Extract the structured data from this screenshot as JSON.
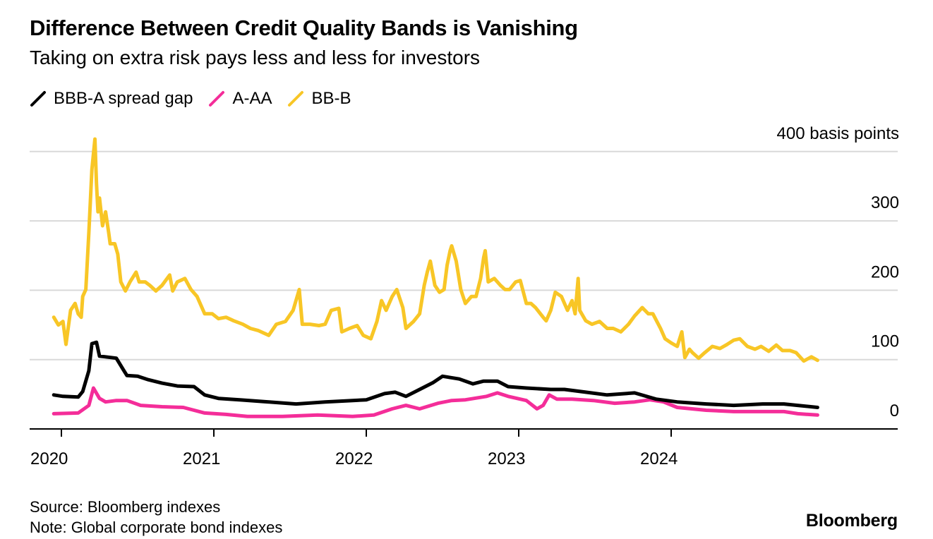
{
  "header": {
    "title": "Difference Between Credit Quality Bands is Vanishing",
    "subtitle": "Taking on extra risk pays less and less for investors"
  },
  "legend": [
    {
      "label": "BBB-A spread gap",
      "color": "#000000"
    },
    {
      "label": "A-AA",
      "color": "#f42d99"
    },
    {
      "label": "BB-B",
      "color": "#f8c626"
    }
  ],
  "footer": {
    "source": "Source: Bloomberg indexes",
    "note": "Note: Global corporate bond indexes",
    "logo": "Bloomberg"
  },
  "chart_data": {
    "type": "line",
    "title": "Difference Between Credit Quality Bands is Vanishing",
    "subtitle": "Taking on extra risk pays less and less for investors",
    "xlabel": "",
    "ylabel": "basis points",
    "y_unit_label": "400 basis points",
    "ylim": [
      0,
      400
    ],
    "xlim": [
      2019.8,
      2025.5
    ],
    "yticks": [
      0,
      100,
      200,
      300,
      400
    ],
    "ytick_labels": [
      "0",
      "100",
      "200",
      "300",
      "400 basis points"
    ],
    "xticks": [
      2020,
      2021,
      2022,
      2023,
      2024
    ],
    "xtick_labels": [
      "2020",
      "2021",
      "2022",
      "2023",
      "2024"
    ],
    "grid": true,
    "legend_position": "top-left",
    "series": [
      {
        "name": "BB-B",
        "color": "#f8c626",
        "points": [
          [
            2019.95,
            161
          ],
          [
            2019.98,
            150
          ],
          [
            2020.01,
            155
          ],
          [
            2020.03,
            122
          ],
          [
            2020.06,
            171
          ],
          [
            2020.09,
            181
          ],
          [
            2020.11,
            166
          ],
          [
            2020.13,
            161
          ],
          [
            2020.14,
            191
          ],
          [
            2020.16,
            201
          ],
          [
            2020.18,
            283
          ],
          [
            2020.2,
            374
          ],
          [
            2020.22,
            418
          ],
          [
            2020.23,
            354
          ],
          [
            2020.24,
            313
          ],
          [
            2020.25,
            333
          ],
          [
            2020.27,
            293
          ],
          [
            2020.29,
            313
          ],
          [
            2020.31,
            283
          ],
          [
            2020.32,
            267
          ],
          [
            2020.35,
            267
          ],
          [
            2020.37,
            252
          ],
          [
            2020.39,
            212
          ],
          [
            2020.42,
            199
          ],
          [
            2020.45,
            212
          ],
          [
            2020.49,
            226
          ],
          [
            2020.51,
            212
          ],
          [
            2020.55,
            212
          ],
          [
            2020.58,
            207
          ],
          [
            2020.62,
            199
          ],
          [
            2020.66,
            207
          ],
          [
            2020.71,
            222
          ],
          [
            2020.73,
            199
          ],
          [
            2020.76,
            212
          ],
          [
            2020.81,
            217
          ],
          [
            2020.85,
            201
          ],
          [
            2020.89,
            191
          ],
          [
            2020.94,
            166
          ],
          [
            2020.99,
            166
          ],
          [
            2021.03,
            159
          ],
          [
            2021.08,
            161
          ],
          [
            2021.13,
            156
          ],
          [
            2021.19,
            151
          ],
          [
            2021.24,
            145
          ],
          [
            2021.29,
            142
          ],
          [
            2021.36,
            135
          ],
          [
            2021.41,
            151
          ],
          [
            2021.47,
            155
          ],
          [
            2021.52,
            171
          ],
          [
            2021.56,
            201
          ],
          [
            2021.58,
            151
          ],
          [
            2021.63,
            151
          ],
          [
            2021.69,
            149
          ],
          [
            2021.73,
            151
          ],
          [
            2021.77,
            171
          ],
          [
            2021.82,
            174
          ],
          [
            2021.84,
            140
          ],
          [
            2021.89,
            145
          ],
          [
            2021.94,
            149
          ],
          [
            2021.98,
            135
          ],
          [
            2022.03,
            130
          ],
          [
            2022.07,
            155
          ],
          [
            2022.1,
            185
          ],
          [
            2022.13,
            171
          ],
          [
            2022.17,
            191
          ],
          [
            2022.2,
            201
          ],
          [
            2022.24,
            175
          ],
          [
            2022.26,
            145
          ],
          [
            2022.31,
            155
          ],
          [
            2022.35,
            166
          ],
          [
            2022.38,
            207
          ],
          [
            2022.4,
            226
          ],
          [
            2022.42,
            242
          ],
          [
            2022.45,
            207
          ],
          [
            2022.48,
            197
          ],
          [
            2022.51,
            201
          ],
          [
            2022.53,
            236
          ],
          [
            2022.55,
            257
          ],
          [
            2022.56,
            264
          ],
          [
            2022.59,
            242
          ],
          [
            2022.62,
            201
          ],
          [
            2022.65,
            181
          ],
          [
            2022.69,
            191
          ],
          [
            2022.72,
            191
          ],
          [
            2022.75,
            217
          ],
          [
            2022.77,
            247
          ],
          [
            2022.78,
            257
          ],
          [
            2022.8,
            212
          ],
          [
            2022.84,
            217
          ],
          [
            2022.88,
            207
          ],
          [
            2022.91,
            201
          ],
          [
            2022.94,
            201
          ],
          [
            2022.98,
            212
          ],
          [
            2023.01,
            214
          ],
          [
            2023.05,
            181
          ],
          [
            2023.08,
            181
          ],
          [
            2023.11,
            175
          ],
          [
            2023.16,
            161
          ],
          [
            2023.18,
            156
          ],
          [
            2023.21,
            171
          ],
          [
            2023.24,
            197
          ],
          [
            2023.28,
            191
          ],
          [
            2023.32,
            171
          ],
          [
            2023.35,
            185
          ],
          [
            2023.37,
            166
          ],
          [
            2023.39,
            217
          ],
          [
            2023.4,
            171
          ],
          [
            2023.44,
            156
          ],
          [
            2023.48,
            151
          ],
          [
            2023.53,
            155
          ],
          [
            2023.58,
            145
          ],
          [
            2023.62,
            145
          ],
          [
            2023.67,
            140
          ],
          [
            2023.72,
            151
          ],
          [
            2023.76,
            163
          ],
          [
            2023.81,
            175
          ],
          [
            2023.85,
            166
          ],
          [
            2023.88,
            166
          ],
          [
            2023.93,
            145
          ],
          [
            2023.96,
            130
          ],
          [
            2024.0,
            124
          ],
          [
            2024.04,
            119
          ],
          [
            2024.07,
            140
          ],
          [
            2024.09,
            103
          ],
          [
            2024.12,
            115
          ],
          [
            2024.14,
            110
          ],
          [
            2024.18,
            102
          ],
          [
            2024.22,
            110
          ],
          [
            2024.27,
            119
          ],
          [
            2024.32,
            116
          ],
          [
            2024.36,
            121
          ],
          [
            2024.41,
            128
          ],
          [
            2024.45,
            130
          ],
          [
            2024.5,
            119
          ],
          [
            2024.55,
            115
          ],
          [
            2024.59,
            119
          ],
          [
            2024.64,
            112
          ],
          [
            2024.69,
            121
          ],
          [
            2024.73,
            113
          ],
          [
            2024.78,
            113
          ],
          [
            2024.82,
            110
          ],
          [
            2024.87,
            98
          ],
          [
            2024.92,
            104
          ],
          [
            2024.96,
            99
          ]
        ]
      },
      {
        "name": "BBB-A spread gap",
        "color": "#000000",
        "points": [
          [
            2019.95,
            49
          ],
          [
            2020.01,
            47
          ],
          [
            2020.11,
            46
          ],
          [
            2020.14,
            54
          ],
          [
            2020.18,
            84
          ],
          [
            2020.2,
            123
          ],
          [
            2020.23,
            125
          ],
          [
            2020.25,
            105
          ],
          [
            2020.29,
            104
          ],
          [
            2020.36,
            102
          ],
          [
            2020.41,
            84
          ],
          [
            2020.43,
            77
          ],
          [
            2020.5,
            76
          ],
          [
            2020.57,
            71
          ],
          [
            2020.66,
            66
          ],
          [
            2020.76,
            62
          ],
          [
            2020.87,
            61
          ],
          [
            2020.94,
            49
          ],
          [
            2021.03,
            44
          ],
          [
            2021.17,
            42
          ],
          [
            2021.36,
            39
          ],
          [
            2021.54,
            36
          ],
          [
            2021.73,
            39
          ],
          [
            2021.91,
            41
          ],
          [
            2022.0,
            42
          ],
          [
            2022.12,
            51
          ],
          [
            2022.19,
            53
          ],
          [
            2022.26,
            47
          ],
          [
            2022.35,
            57
          ],
          [
            2022.44,
            67
          ],
          [
            2022.5,
            76
          ],
          [
            2022.61,
            72
          ],
          [
            2022.7,
            65
          ],
          [
            2022.77,
            69
          ],
          [
            2022.86,
            69
          ],
          [
            2022.93,
            61
          ],
          [
            2023.05,
            59
          ],
          [
            2023.21,
            57
          ],
          [
            2023.3,
            57
          ],
          [
            2023.44,
            53
          ],
          [
            2023.58,
            49
          ],
          [
            2023.76,
            52
          ],
          [
            2023.9,
            43
          ],
          [
            2024.04,
            39
          ],
          [
            2024.23,
            36
          ],
          [
            2024.41,
            34
          ],
          [
            2024.6,
            36
          ],
          [
            2024.74,
            36
          ],
          [
            2024.83,
            34
          ],
          [
            2024.96,
            31
          ]
        ]
      },
      {
        "name": "A-AA",
        "color": "#f42d99",
        "points": [
          [
            2019.95,
            22
          ],
          [
            2020.11,
            23
          ],
          [
            2020.18,
            34
          ],
          [
            2020.21,
            59
          ],
          [
            2020.25,
            44
          ],
          [
            2020.29,
            39
          ],
          [
            2020.36,
            41
          ],
          [
            2020.43,
            41
          ],
          [
            2020.52,
            34
          ],
          [
            2020.66,
            32
          ],
          [
            2020.8,
            31
          ],
          [
            2020.94,
            23
          ],
          [
            2021.08,
            21
          ],
          [
            2021.22,
            18
          ],
          [
            2021.45,
            18
          ],
          [
            2021.68,
            20
          ],
          [
            2021.91,
            18
          ],
          [
            2022.05,
            20
          ],
          [
            2022.17,
            29
          ],
          [
            2022.26,
            34
          ],
          [
            2022.35,
            29
          ],
          [
            2022.47,
            37
          ],
          [
            2022.56,
            41
          ],
          [
            2022.65,
            42
          ],
          [
            2022.79,
            47
          ],
          [
            2022.86,
            52
          ],
          [
            2022.93,
            47
          ],
          [
            2023.05,
            41
          ],
          [
            2023.12,
            29
          ],
          [
            2023.16,
            34
          ],
          [
            2023.2,
            49
          ],
          [
            2023.25,
            43
          ],
          [
            2023.35,
            43
          ],
          [
            2023.49,
            41
          ],
          [
            2023.63,
            37
          ],
          [
            2023.76,
            39
          ],
          [
            2023.86,
            42
          ],
          [
            2023.95,
            39
          ],
          [
            2024.04,
            31
          ],
          [
            2024.23,
            27
          ],
          [
            2024.41,
            25
          ],
          [
            2024.6,
            25
          ],
          [
            2024.74,
            25
          ],
          [
            2024.83,
            22
          ],
          [
            2024.96,
            20
          ]
        ]
      }
    ]
  }
}
